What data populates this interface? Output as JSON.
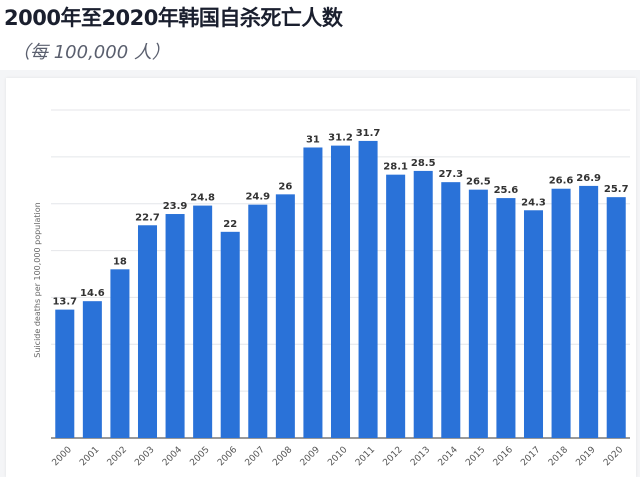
{
  "header": {
    "title": "2000年至2020年韩国自杀死亡人数",
    "subtitle": "（每 100,000 人）"
  },
  "chart_data": {
    "type": "bar",
    "title": "2000年至2020年韩国自杀死亡人数",
    "subtitle": "（每 100,000 人）",
    "xlabel": "",
    "ylabel": "Suicide deaths per 100,000 population",
    "categories": [
      "2000",
      "2001",
      "2002",
      "2003",
      "2004",
      "2005",
      "2006",
      "2007",
      "2008",
      "2009",
      "2010",
      "2011",
      "2012",
      "2013",
      "2014",
      "2015",
      "2016",
      "2017",
      "2018",
      "2019",
      "2020"
    ],
    "values": [
      13.7,
      14.6,
      18,
      22.7,
      23.9,
      24.8,
      22,
      24.9,
      26,
      31,
      31.2,
      31.7,
      28.1,
      28.5,
      27.3,
      26.5,
      25.6,
      24.3,
      26.6,
      26.9,
      25.7
    ],
    "ylim": [
      0,
      35
    ],
    "grid": true,
    "bar_color": "#2a72d8",
    "label_color": "#333333"
  }
}
